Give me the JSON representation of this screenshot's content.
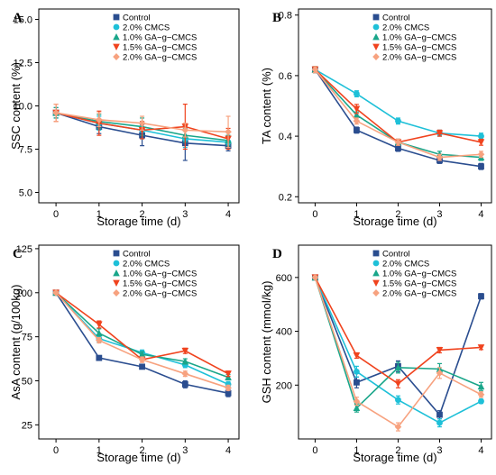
{
  "colors": {
    "Control": "#2a4d8f",
    "2.0% CMCS": "#1ec0d8",
    "1.0% GA-g-CMCS": "#1aa68a",
    "1.5% GA-g-CMCS": "#f0431e",
    "2.0% GA-g-CMCS": "#f7a27f"
  },
  "chart_data": [
    {
      "panel": "A",
      "type": "line",
      "xlabel": "Storage time (d)",
      "ylabel": "SSC content (%)",
      "x": [
        0,
        1,
        2,
        3,
        4
      ],
      "xlim": [
        -0.4,
        4.25
      ],
      "ylim": [
        4.4,
        15.6
      ],
      "yticks": [
        "5.0",
        "7.5",
        "10.0",
        "12.5",
        "15.0"
      ],
      "grid": false,
      "legend_position": "top-right",
      "series": [
        {
          "name": "Control",
          "values": [
            9.6,
            8.8,
            8.3,
            7.85,
            7.7
          ],
          "err": [
            0.3,
            0.4,
            0.6,
            1.0,
            0.3
          ]
        },
        {
          "name": "2.0% CMCS",
          "values": [
            9.6,
            9.0,
            8.6,
            8.1,
            7.9
          ],
          "err": [
            0.3,
            0.4,
            0.5,
            0.5,
            0.3
          ]
        },
        {
          "name": "1.0% GA-g-CMCS",
          "values": [
            9.6,
            9.1,
            8.8,
            8.3,
            8.0
          ],
          "err": [
            0.3,
            0.4,
            0.5,
            0.4,
            0.3
          ]
        },
        {
          "name": "1.5% GA-g-CMCS",
          "values": [
            9.6,
            9.0,
            8.6,
            8.8,
            8.1
          ],
          "err": [
            0.5,
            0.7,
            0.5,
            1.3,
            0.6
          ]
        },
        {
          "name": "2.0% GA-g-CMCS",
          "values": [
            9.6,
            9.2,
            9.0,
            8.6,
            8.5
          ],
          "err": [
            0.5,
            0.4,
            0.4,
            0.4,
            0.9
          ]
        }
      ]
    },
    {
      "panel": "B",
      "type": "line",
      "xlabel": "Storage time (d)",
      "ylabel": "TA content (%)",
      "x": [
        0,
        1,
        2,
        3,
        4
      ],
      "xlim": [
        -0.4,
        4.25
      ],
      "ylim": [
        0.18,
        0.82
      ],
      "yticks": [
        "0.2",
        "0.4",
        "0.6",
        "0.8"
      ],
      "grid": false,
      "legend_position": "top-right",
      "series": [
        {
          "name": "Control",
          "values": [
            0.62,
            0.42,
            0.36,
            0.32,
            0.3
          ],
          "err": [
            0.01,
            0.01,
            0.01,
            0.01,
            0.01
          ]
        },
        {
          "name": "2.0% CMCS",
          "values": [
            0.62,
            0.54,
            0.45,
            0.41,
            0.4
          ],
          "err": [
            0.01,
            0.01,
            0.01,
            0.01,
            0.01
          ]
        },
        {
          "name": "1.0% GA-g-CMCS",
          "values": [
            0.62,
            0.47,
            0.38,
            0.34,
            0.33
          ],
          "err": [
            0.01,
            0.01,
            0.01,
            0.01,
            0.01
          ]
        },
        {
          "name": "1.5% GA-g-CMCS",
          "values": [
            0.62,
            0.49,
            0.38,
            0.41,
            0.38
          ],
          "err": [
            0.01,
            0.015,
            0.01,
            0.01,
            0.01
          ]
        },
        {
          "name": "2.0% GA-g-CMCS",
          "values": [
            0.62,
            0.45,
            0.38,
            0.33,
            0.34
          ],
          "err": [
            0.01,
            0.01,
            0.01,
            0.01,
            0.01
          ]
        }
      ]
    },
    {
      "panel": "C",
      "type": "line",
      "xlabel": "Storage time (d)",
      "ylabel": "AsA content (g/100kg)",
      "x": [
        0,
        1,
        2,
        3,
        4
      ],
      "xlim": [
        -0.4,
        4.25
      ],
      "ylim": [
        17,
        127
      ],
      "yticks": [
        "25",
        "50",
        "75",
        "100",
        "125"
      ],
      "grid": false,
      "legend_position": "top-right",
      "series": [
        {
          "name": "Control",
          "values": [
            100,
            63,
            58,
            48,
            43
          ],
          "err": [
            0.8,
            1.0,
            1.2,
            2.0,
            2.0
          ]
        },
        {
          "name": "2.0% CMCS",
          "values": [
            100,
            74,
            66,
            59,
            48
          ],
          "err": [
            0.8,
            2.0,
            1.5,
            1.5,
            1.5
          ]
        },
        {
          "name": "1.0% GA-g-CMCS",
          "values": [
            100,
            77,
            65,
            61,
            52
          ],
          "err": [
            0.8,
            2.5,
            1.5,
            1.5,
            1.5
          ]
        },
        {
          "name": "1.5% GA-g-CMCS",
          "values": [
            100,
            82,
            62,
            67,
            54
          ],
          "err": [
            0.8,
            2.0,
            1.5,
            1.5,
            1.5
          ]
        },
        {
          "name": "2.0% GA-g-CMCS",
          "values": [
            100,
            73,
            62,
            54,
            46
          ],
          "err": [
            0.8,
            1.5,
            1.5,
            1.5,
            1.5
          ]
        }
      ]
    },
    {
      "panel": "D",
      "type": "line",
      "xlabel": "Storage time (d)",
      "ylabel": "GSH content (mmol/kg)",
      "x": [
        0,
        1,
        2,
        3,
        4
      ],
      "xlim": [
        -0.4,
        4.25
      ],
      "ylim": [
        0,
        720
      ],
      "yticks": [
        "200",
        "400",
        "600"
      ],
      "grid": false,
      "legend_position": "top-right",
      "series": [
        {
          "name": "Control",
          "values": [
            600,
            210,
            270,
            90,
            530
          ],
          "err": [
            5,
            20,
            20,
            15,
            10
          ]
        },
        {
          "name": "2.0% CMCS",
          "values": [
            600,
            250,
            145,
            60,
            140
          ],
          "err": [
            5,
            20,
            15,
            15,
            8
          ]
        },
        {
          "name": "1.0% GA-g-CMCS",
          "values": [
            600,
            115,
            265,
            260,
            195
          ],
          "err": [
            5,
            15,
            20,
            20,
            15
          ]
        },
        {
          "name": "1.5% GA-g-CMCS",
          "values": [
            600,
            310,
            205,
            330,
            340
          ],
          "err": [
            5,
            10,
            15,
            10,
            8
          ]
        },
        {
          "name": "2.0% GA-g-CMCS",
          "values": [
            600,
            140,
            45,
            245,
            165
          ],
          "err": [
            5,
            15,
            15,
            20,
            10
          ]
        }
      ]
    }
  ],
  "legend_labels": [
    "Control",
    "2.0% CMCS",
    "1.0% GA−g−CMCS",
    "1.5% GA−g−CMCS",
    "2.0% GA−g−CMCS"
  ],
  "markers": [
    "square",
    "circle",
    "triangle-up",
    "triangle-down",
    "diamond"
  ]
}
